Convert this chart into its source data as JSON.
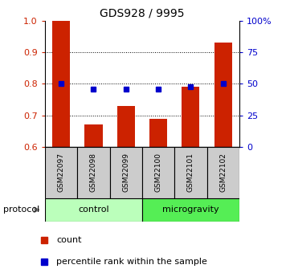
{
  "title": "GDS928 / 9995",
  "samples": [
    "GSM22097",
    "GSM22098",
    "GSM22099",
    "GSM22100",
    "GSM22101",
    "GSM22102"
  ],
  "bar_values": [
    1.0,
    0.67,
    0.73,
    0.69,
    0.79,
    0.93
  ],
  "percentile_values": [
    0.802,
    0.782,
    0.782,
    0.782,
    0.792,
    0.802
  ],
  "bar_color": "#cc2200",
  "percentile_color": "#0000cc",
  "ylim": [
    0.6,
    1.0
  ],
  "yticks_left": [
    0.6,
    0.7,
    0.8,
    0.9,
    1.0
  ],
  "yticks_right": [
    0,
    25,
    50,
    75,
    100
  ],
  "dotted_lines": [
    0.7,
    0.8,
    0.9
  ],
  "ctrl_color": "#bbffbb",
  "micro_color": "#55ee55",
  "sample_box_color": "#cccccc",
  "bar_width": 0.55,
  "x_positions": [
    0,
    1,
    2,
    3,
    4,
    5
  ]
}
